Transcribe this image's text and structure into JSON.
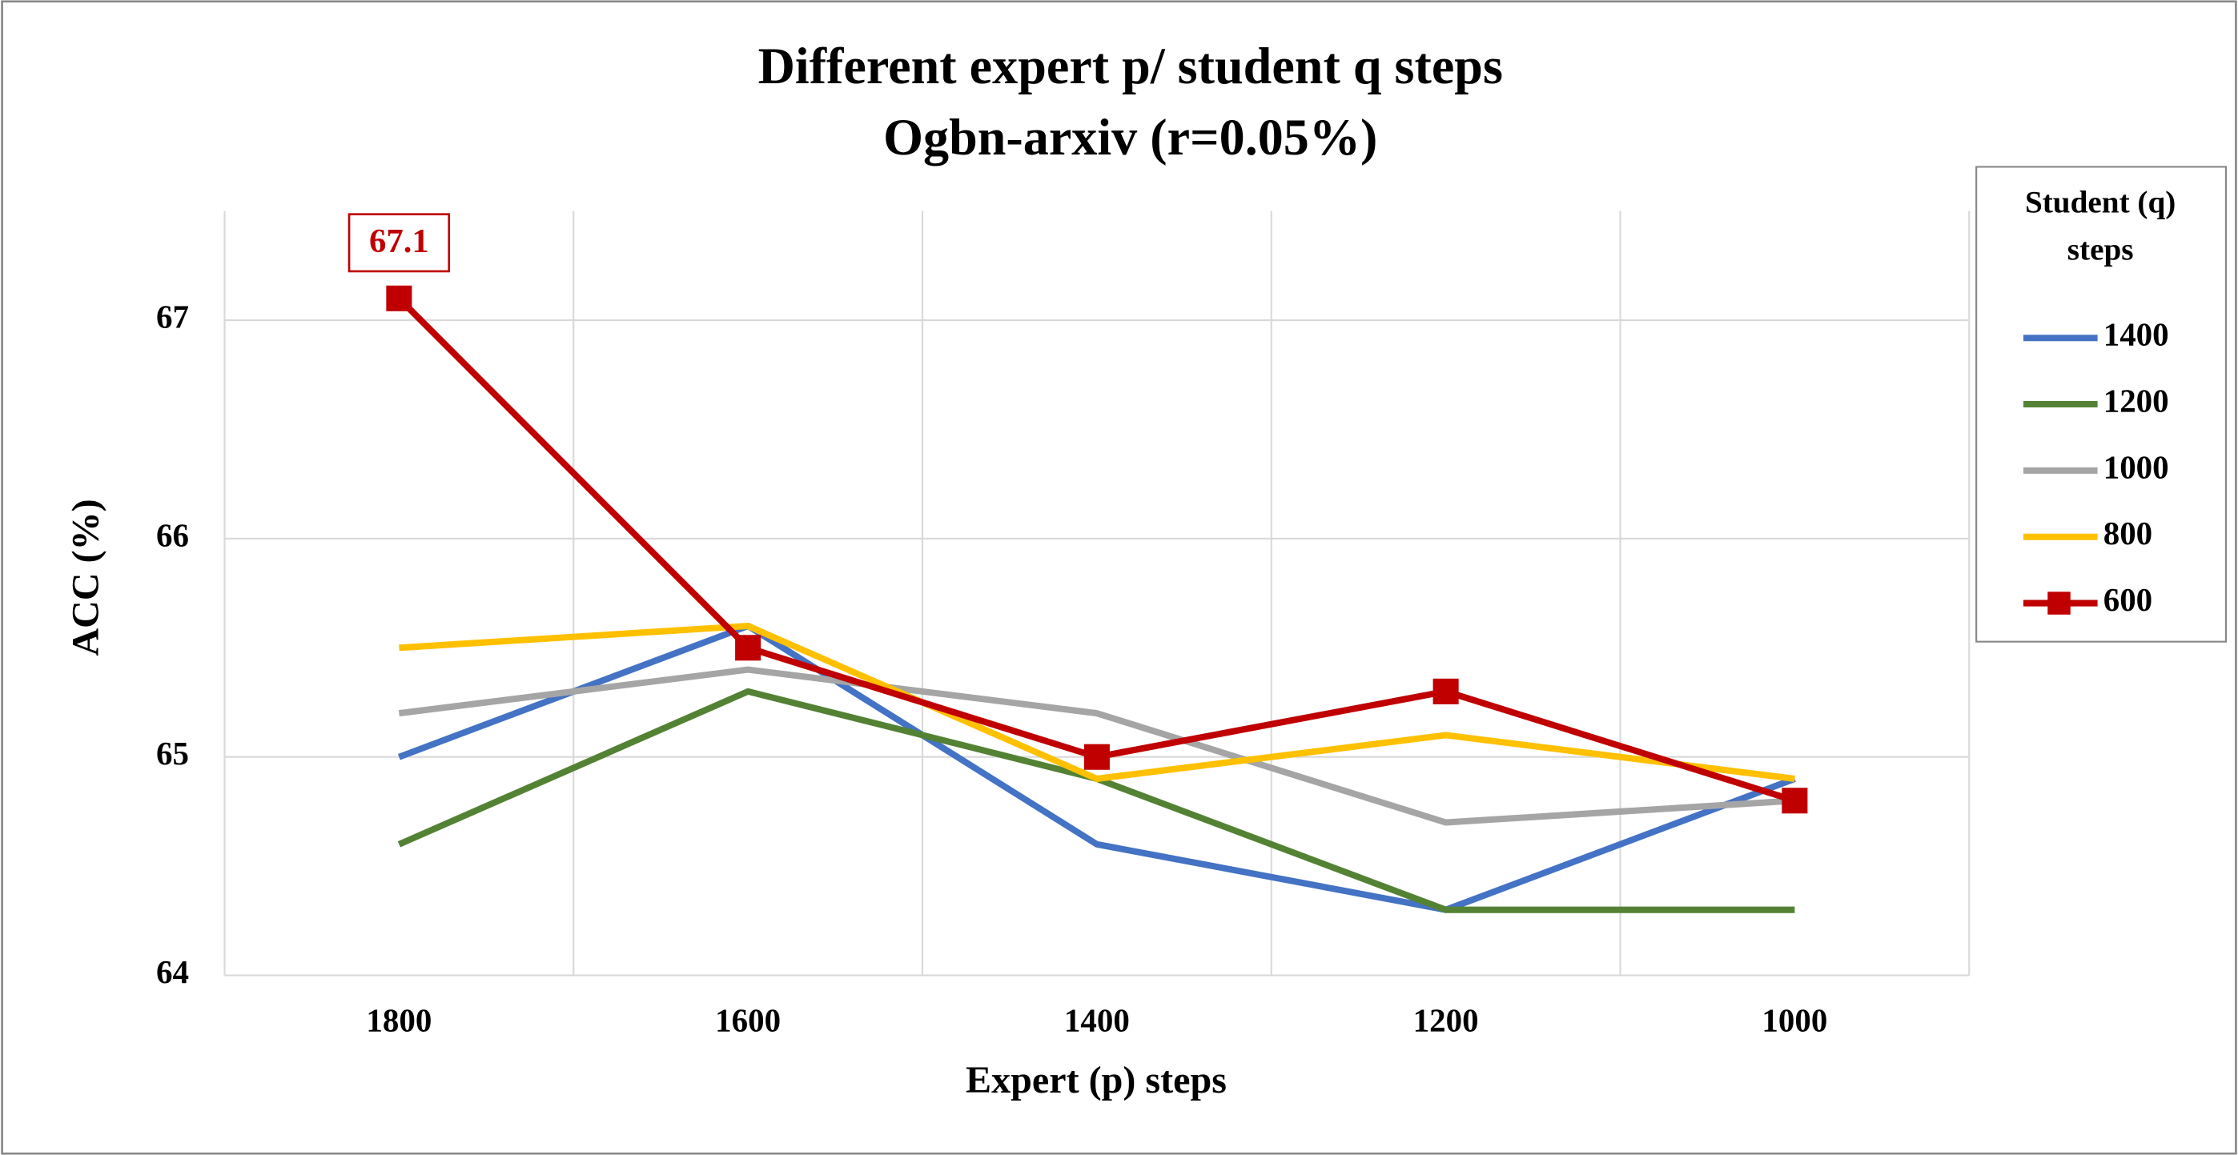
{
  "chart_data": {
    "type": "line",
    "title": [
      "Different expert p/ student q steps",
      "Ogbn-arxiv (r=0.05%)"
    ],
    "x_label": "Expert (p) steps",
    "y_label": "ACC (%)",
    "legend_title": "Student (q) steps",
    "legend": "right",
    "grid": true,
    "categories": [
      "1800",
      "1600",
      "1400",
      "1200",
      "1000"
    ],
    "ylim": [
      64,
      67.5
    ],
    "yticks": [
      64,
      65,
      66,
      67
    ],
    "series": [
      {
        "name": "1400",
        "color": "#4472c4",
        "values": [
          65.0,
          65.6,
          64.6,
          64.3,
          64.9
        ]
      },
      {
        "name": "1200",
        "color": "#548235",
        "values": [
          64.6,
          65.3,
          64.9,
          64.3,
          64.3
        ]
      },
      {
        "name": "1000",
        "color": "#a5a5a5",
        "values": [
          65.2,
          65.4,
          65.2,
          64.7,
          64.8
        ]
      },
      {
        "name": "800",
        "color": "#ffc000",
        "values": [
          65.5,
          65.6,
          64.9,
          65.1,
          64.9
        ]
      },
      {
        "name": "600",
        "color": "#c00000",
        "marker": "square",
        "values": [
          67.1,
          65.5,
          65.0,
          65.3,
          64.8
        ],
        "labeled_points": [
          0
        ]
      }
    ]
  }
}
